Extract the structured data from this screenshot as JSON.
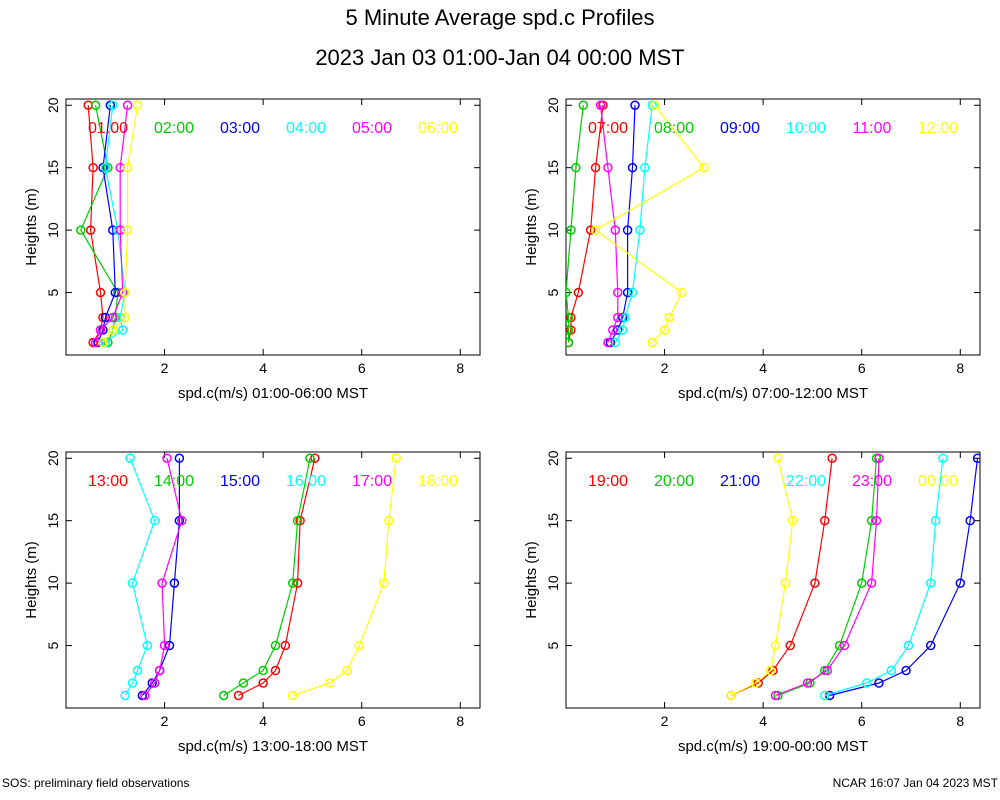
{
  "header": {
    "title": "5 Minute Average spd.c Profiles",
    "subtitle": "2023 Jan 03 01:00-Jan 04 00:00 MST"
  },
  "footer": {
    "left": "SOS: preliminary field observations",
    "right": "NCAR 16:07 Jan 04 2023 MST"
  },
  "colors": [
    "#ff0000",
    "#00cc00",
    "#0000ff",
    "#00ffff",
    "#ff00ff",
    "#ffff00"
  ],
  "chart_data": [
    {
      "type": "line",
      "xlabel": "spd.c(m/s) 01:00-06:00 MST",
      "ylabel": "Heights (m)",
      "xlim": [
        0,
        8.4
      ],
      "ylim": [
        0,
        20.5
      ],
      "xticks": [
        2,
        4,
        6,
        8
      ],
      "yticks": [
        5,
        10,
        15,
        20
      ],
      "heights": [
        1,
        2,
        3,
        5,
        10,
        15,
        20
      ],
      "series": [
        {
          "name": "01:00",
          "values": [
            0.55,
            0.7,
            0.75,
            0.7,
            0.5,
            0.55,
            0.45
          ]
        },
        {
          "name": "02:00",
          "values": [
            0.85,
            0.95,
            1.0,
            1.05,
            0.3,
            0.85,
            0.6
          ]
        },
        {
          "name": "03:00",
          "values": [
            0.65,
            0.75,
            0.8,
            1.0,
            0.95,
            0.75,
            0.9
          ]
        },
        {
          "name": "04:00",
          "values": [
            0.8,
            1.15,
            1.1,
            1.2,
            1.05,
            0.8,
            0.95
          ]
        },
        {
          "name": "05:00",
          "values": [
            0.6,
            0.7,
            0.95,
            1.15,
            1.1,
            1.1,
            1.25
          ]
        },
        {
          "name": "06:00",
          "values": [
            0.75,
            0.95,
            1.2,
            1.2,
            1.25,
            1.25,
            1.45
          ]
        }
      ]
    },
    {
      "type": "line",
      "xlabel": "spd.c(m/s) 07:00-12:00 MST",
      "ylabel": "Heights (m)",
      "xlim": [
        0,
        8.4
      ],
      "ylim": [
        0,
        20.5
      ],
      "xticks": [
        2,
        4,
        6,
        8
      ],
      "yticks": [
        5,
        10,
        15,
        20
      ],
      "heights": [
        1,
        2,
        3,
        5,
        10,
        15,
        20
      ],
      "series": [
        {
          "name": "07:00",
          "values": [
            0.05,
            0.1,
            0.1,
            0.25,
            0.5,
            0.6,
            0.75
          ]
        },
        {
          "name": "08:00",
          "values": [
            0.05,
            0.05,
            0.05,
            0.0,
            0.1,
            0.2,
            0.35
          ]
        },
        {
          "name": "09:00",
          "values": [
            0.9,
            1.05,
            1.15,
            1.25,
            1.25,
            1.35,
            1.4
          ]
        },
        {
          "name": "10:00",
          "values": [
            1.0,
            1.15,
            1.2,
            1.35,
            1.5,
            1.6,
            1.75
          ]
        },
        {
          "name": "11:00",
          "values": [
            0.85,
            0.95,
            1.05,
            1.05,
            1.0,
            0.85,
            0.7
          ]
        },
        {
          "name": "12:00",
          "values": [
            1.75,
            2.0,
            2.1,
            2.35,
            0.6,
            2.8,
            1.8
          ]
        }
      ]
    },
    {
      "type": "line",
      "xlabel": "spd.c(m/s) 13:00-18:00 MST",
      "ylabel": "Heights (m)",
      "xlim": [
        0,
        8.4
      ],
      "ylim": [
        0,
        20.5
      ],
      "xticks": [
        2,
        4,
        6,
        8
      ],
      "yticks": [
        5,
        10,
        15,
        20
      ],
      "heights": [
        1,
        2,
        3,
        5,
        10,
        15,
        20
      ],
      "series": [
        {
          "name": "13:00",
          "values": [
            3.5,
            4.0,
            4.25,
            4.45,
            4.7,
            4.75,
            5.05
          ]
        },
        {
          "name": "14:00",
          "values": [
            3.2,
            3.6,
            4.0,
            4.25,
            4.6,
            4.7,
            4.95
          ]
        },
        {
          "name": "15:00",
          "values": [
            1.55,
            1.75,
            1.9,
            2.1,
            2.2,
            2.3,
            2.3
          ]
        },
        {
          "name": "16:00",
          "values": [
            1.2,
            1.35,
            1.45,
            1.65,
            1.35,
            1.8,
            1.3
          ]
        },
        {
          "name": "17:00",
          "values": [
            1.6,
            1.8,
            1.9,
            2.0,
            1.95,
            2.35,
            2.05
          ]
        },
        {
          "name": "18:00",
          "values": [
            4.6,
            5.35,
            5.7,
            5.95,
            6.45,
            6.55,
            6.7
          ]
        }
      ]
    },
    {
      "type": "line",
      "xlabel": "spd.c(m/s) 19:00-00:00 MST",
      "ylabel": "Heights (m)",
      "xlim": [
        0,
        8.4
      ],
      "ylim": [
        0,
        20.5
      ],
      "xticks": [
        2,
        4,
        6,
        8
      ],
      "yticks": [
        5,
        10,
        15,
        20
      ],
      "heights": [
        1,
        2,
        3,
        5,
        10,
        15,
        20
      ],
      "series": [
        {
          "name": "19:00",
          "values": [
            3.35,
            3.9,
            4.2,
            4.55,
            5.05,
            5.25,
            5.4
          ]
        },
        {
          "name": "20:00",
          "values": [
            4.3,
            4.95,
            5.25,
            5.55,
            6.0,
            6.2,
            6.3
          ]
        },
        {
          "name": "21:00",
          "values": [
            5.35,
            6.35,
            6.9,
            7.4,
            8.0,
            8.2,
            8.35
          ]
        },
        {
          "name": "22:00",
          "values": [
            5.25,
            6.1,
            6.6,
            6.95,
            7.4,
            7.5,
            7.65
          ]
        },
        {
          "name": "23:00",
          "values": [
            4.25,
            4.9,
            5.3,
            5.65,
            6.2,
            6.3,
            6.35
          ]
        },
        {
          "name": "00:00",
          "values": [
            3.35,
            3.85,
            4.15,
            4.25,
            4.45,
            4.6,
            4.3
          ]
        }
      ]
    }
  ]
}
